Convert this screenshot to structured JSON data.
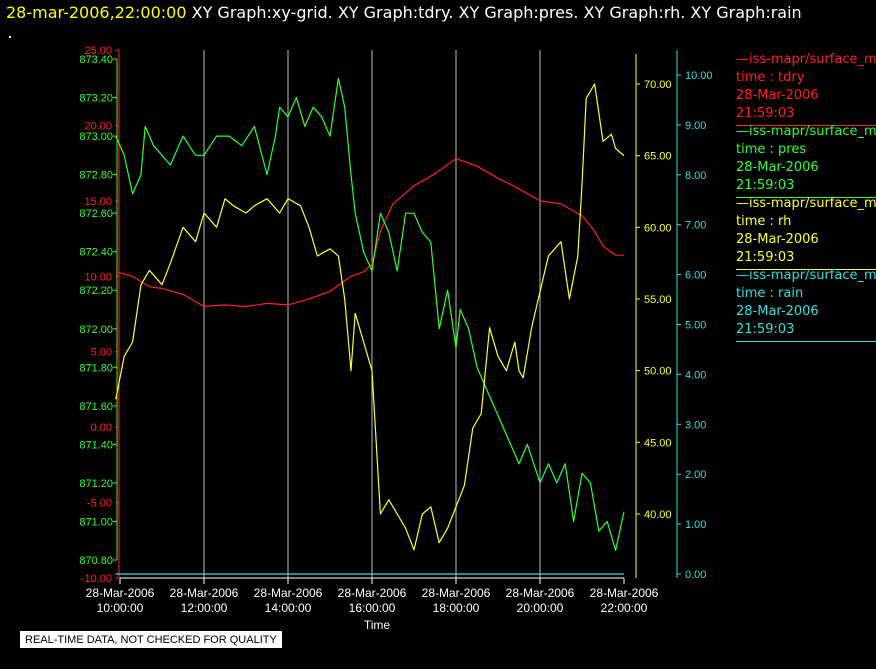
{
  "header": {
    "timestamp": "28-mar-2006,22:00:00",
    "graphs": "XY Graph:xy-grid.  XY Graph:tdry.  XY Graph:pres.  XY Graph:rh.  XY Graph:rain"
  },
  "legend": [
    {
      "line1": "—iss-mapr/surface_m",
      "line2": "time : tdry",
      "line3": "28-Mar-2006",
      "line4": "21:59:03",
      "color": "#ff2020"
    },
    {
      "line1": "—iss-mapr/surface_m",
      "line2": "time : pres",
      "line3": "28-Mar-2006",
      "line4": "21:59:03",
      "color": "#30ff30"
    },
    {
      "line1": "—iss-mapr/surface_m",
      "line2": "time : rh",
      "line3": "28-Mar-2006",
      "line4": "21:59:03",
      "color": "#ffff30"
    },
    {
      "line1": "—iss-mapr/surface_m",
      "line2": "time : rain",
      "line3": "28-Mar-2006",
      "line4": "21:59:03",
      "color": "#30e0e0"
    }
  ],
  "footer_note": "REAL-TIME DATA, NOT CHECKED FOR QUALITY",
  "chart_data": {
    "type": "line",
    "xlabel": "Time",
    "x_ticks": [
      {
        "date": "28-Mar-2006",
        "time": "10:00:00",
        "hour": 10
      },
      {
        "date": "28-Mar-2006",
        "time": "12:00:00",
        "hour": 12
      },
      {
        "date": "28-Mar-2006",
        "time": "14:00:00",
        "hour": 14
      },
      {
        "date": "28-Mar-2006",
        "time": "16:00:00",
        "hour": 16
      },
      {
        "date": "28-Mar-2006",
        "time": "18:00:00",
        "hour": 18
      },
      {
        "date": "28-Mar-2006",
        "time": "20:00:00",
        "hour": 20
      },
      {
        "date": "28-Mar-2006",
        "time": "22:00:00",
        "hour": 22
      }
    ],
    "xlim": [
      10,
      22
    ],
    "grid": "vertical",
    "axes": {
      "pres": {
        "color": "#30ff30",
        "ylim": [
          870.75,
          873.45
        ],
        "ticks": [
          "873.40",
          "873.20",
          "873.00",
          "872.80",
          "872.60",
          "872.40",
          "872.20",
          "872.00",
          "871.80",
          "871.60",
          "871.40",
          "871.20",
          "871.00",
          "870.80"
        ]
      },
      "tdry": {
        "color": "#ff2020",
        "ylim": [
          -10,
          25
        ],
        "ticks": [
          "25.00",
          "20.00",
          "15.00",
          "10.00",
          "5.00",
          "0.00",
          "-5.00",
          "-10.00"
        ]
      },
      "rh": {
        "color": "#ffff30",
        "ylim": [
          35,
          72
        ],
        "ticks": [
          "70.00",
          "65.00",
          "60.00",
          "55.00",
          "50.00",
          "45.00",
          "40.00"
        ]
      },
      "rain": {
        "color": "#30e0e0",
        "ylim": [
          0,
          10.5
        ],
        "ticks": [
          "10.00",
          "9.00",
          "8.00",
          "7.00",
          "6.00",
          "5.00",
          "4.00",
          "3.00",
          "2.00",
          "1.00",
          "0.00"
        ]
      }
    },
    "series": [
      {
        "name": "tdry",
        "color": "#ff2020",
        "axis": "tdry",
        "x": [
          9.9,
          10.3,
          10.7,
          11.0,
          11.5,
          12.0,
          12.5,
          13.0,
          13.5,
          14.0,
          14.5,
          15.0,
          15.5,
          15.8,
          16.0,
          16.2,
          16.5,
          17.0,
          17.5,
          18.0,
          18.5,
          19.0,
          19.5,
          20.0,
          20.5,
          21.0,
          21.3,
          21.5,
          21.8,
          22.0
        ],
        "y": [
          10.3,
          10.0,
          9.3,
          9.2,
          8.8,
          8.0,
          8.1,
          8.0,
          8.2,
          8.1,
          8.5,
          9.0,
          10.0,
          10.3,
          10.8,
          13.0,
          14.8,
          16.0,
          16.8,
          17.8,
          17.3,
          16.5,
          15.8,
          15.0,
          14.8,
          14.0,
          13.0,
          12.0,
          11.4,
          11.4
        ]
      },
      {
        "name": "pres",
        "color": "#30ff30",
        "axis": "pres",
        "x": [
          9.9,
          10.1,
          10.3,
          10.5,
          10.6,
          10.8,
          11.0,
          11.2,
          11.5,
          11.8,
          12.0,
          12.3,
          12.6,
          12.9,
          13.2,
          13.5,
          13.7,
          13.8,
          14.0,
          14.2,
          14.4,
          14.6,
          14.8,
          15.0,
          15.2,
          15.35,
          15.5,
          15.6,
          15.8,
          16.0,
          16.2,
          16.4,
          16.6,
          16.8,
          17.0,
          17.2,
          17.4,
          17.6,
          17.8,
          18.0,
          18.1,
          18.3,
          18.5,
          18.7,
          19.0,
          19.3,
          19.5,
          19.7,
          20.0,
          20.2,
          20.4,
          20.6,
          20.8,
          21.0,
          21.2,
          21.4,
          21.6,
          21.8,
          22.0
        ],
        "y": [
          873.0,
          872.9,
          872.7,
          872.8,
          873.05,
          872.95,
          872.9,
          872.85,
          873.0,
          872.9,
          872.9,
          873.0,
          873.0,
          872.95,
          873.05,
          872.8,
          873.0,
          873.15,
          873.1,
          873.2,
          873.05,
          873.15,
          873.1,
          873.0,
          873.3,
          873.15,
          872.8,
          872.6,
          872.4,
          872.3,
          872.6,
          872.5,
          872.3,
          872.6,
          872.6,
          872.5,
          872.45,
          872.0,
          872.2,
          871.9,
          872.1,
          872.0,
          871.8,
          871.7,
          871.55,
          871.4,
          871.3,
          871.4,
          871.2,
          871.3,
          871.2,
          871.3,
          871.0,
          871.25,
          871.2,
          870.95,
          871.0,
          870.85,
          871.05
        ]
      },
      {
        "name": "rh",
        "color": "#ffff30",
        "axis": "rh",
        "x": [
          9.9,
          10.1,
          10.3,
          10.5,
          10.7,
          11.0,
          11.2,
          11.5,
          11.8,
          12.0,
          12.3,
          12.5,
          12.7,
          13.0,
          13.2,
          13.5,
          13.8,
          14.0,
          14.3,
          14.5,
          14.7,
          15.0,
          15.2,
          15.35,
          15.5,
          15.6,
          15.8,
          16.0,
          16.2,
          16.4,
          16.6,
          16.8,
          17.0,
          17.2,
          17.4,
          17.6,
          17.8,
          18.0,
          18.2,
          18.4,
          18.6,
          18.8,
          19.0,
          19.2,
          19.4,
          19.5,
          19.6,
          19.8,
          20.0,
          20.2,
          20.5,
          20.7,
          20.9,
          21.0,
          21.1,
          21.3,
          21.5,
          21.7,
          21.8,
          22.0
        ],
        "y": [
          48.0,
          51.0,
          52.0,
          56.0,
          57.0,
          56.0,
          57.5,
          60.0,
          59.0,
          61.0,
          60.0,
          62.0,
          61.5,
          61.0,
          61.5,
          62.0,
          61.0,
          62.0,
          61.5,
          60.0,
          58.0,
          58.5,
          58.0,
          55.0,
          50.0,
          54.0,
          52.0,
          50.0,
          40.0,
          41.0,
          40.0,
          39.0,
          37.5,
          40.0,
          40.5,
          38.0,
          39.0,
          40.5,
          42.0,
          46.0,
          47.0,
          53.0,
          51.0,
          50.0,
          52.0,
          50.0,
          49.5,
          53.0,
          55.5,
          58.0,
          59.0,
          55.0,
          58.0,
          63.0,
          69.0,
          70.0,
          66.0,
          66.5,
          65.5,
          65.0
        ]
      },
      {
        "name": "rain",
        "color": "#30e0e0",
        "axis": "rain",
        "x": [
          9.9,
          22.0
        ],
        "y": [
          0.0,
          0.0
        ]
      }
    ]
  }
}
